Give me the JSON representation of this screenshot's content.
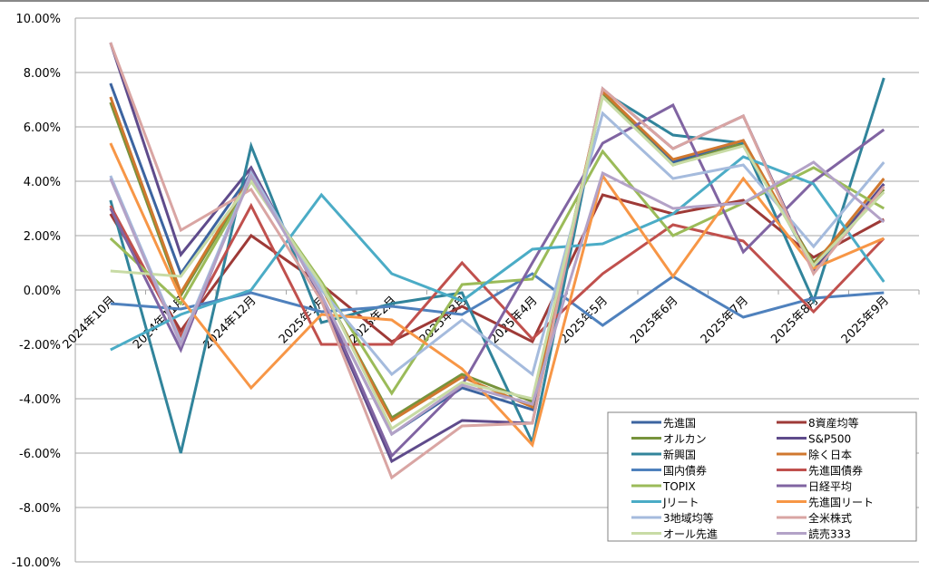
{
  "chart_data": {
    "type": "line",
    "title": "",
    "xlabel": "",
    "ylabel": "",
    "ylim": [
      -10,
      10
    ],
    "y_ticks": [
      "10.00%",
      "8.00%",
      "6.00%",
      "4.00%",
      "2.00%",
      "0.00%",
      "-2.00%",
      "-4.00%",
      "-6.00%",
      "-8.00%",
      "-10.00%"
    ],
    "y_tick_values": [
      10,
      8,
      6,
      4,
      2,
      0,
      -2,
      -4,
      -6,
      -8,
      -10
    ],
    "grid": true,
    "legend_position": "bottom-right",
    "categories": [
      "2024年10月",
      "2024年11月",
      "2024年12月",
      "2025年1月",
      "2025年2月",
      "2025年3月",
      "2025年4月",
      "2025年5月",
      "2025年6月",
      "2025年7月",
      "2025年8月",
      "2025年9月"
    ],
    "series": [
      {
        "name": "先進国",
        "color": "#3C64A0",
        "values": [
          7.6,
          0.6,
          4.3,
          -0.2,
          -5.3,
          -3.6,
          -4.4,
          7.3,
          4.7,
          5.5,
          0.8,
          3.9
        ]
      },
      {
        "name": "8資産均等",
        "color": "#9E3A37",
        "values": [
          2.8,
          -1.5,
          2.0,
          0.2,
          -1.9,
          -0.6,
          -1.9,
          3.5,
          2.8,
          3.3,
          1.2,
          2.6
        ]
      },
      {
        "name": "オルカン",
        "color": "#77933C",
        "values": [
          6.9,
          -0.2,
          4.1,
          0.1,
          -4.7,
          -3.1,
          -4.1,
          7.2,
          4.6,
          5.4,
          1.0,
          3.7
        ]
      },
      {
        "name": "S&P500",
        "color": "#5F4B8B",
        "values": [
          9.1,
          1.3,
          4.5,
          -0.3,
          -6.3,
          -4.8,
          -4.9,
          7.4,
          5.2,
          6.4,
          0.7,
          3.9
        ]
      },
      {
        "name": "新興国",
        "color": "#31849B",
        "values": [
          3.3,
          -6.0,
          5.3,
          -1.2,
          -0.5,
          -0.1,
          -5.6,
          7.3,
          5.7,
          5.4,
          -0.4,
          7.8
        ]
      },
      {
        "name": "除く日本",
        "color": "#D0782F",
        "values": [
          7.1,
          -0.1,
          4.2,
          0.1,
          -4.8,
          -3.2,
          -4.3,
          7.3,
          4.8,
          5.5,
          0.9,
          4.1
        ]
      },
      {
        "name": "国内債券",
        "color": "#4F81BD",
        "values": [
          -0.5,
          -0.7,
          -0.1,
          -0.8,
          -0.6,
          -0.9,
          0.6,
          -1.3,
          0.5,
          -1.0,
          -0.3,
          -0.1
        ]
      },
      {
        "name": "先進国債券",
        "color": "#C0504D",
        "values": [
          3.1,
          -1.7,
          3.1,
          -2.0,
          -2.0,
          1.0,
          -1.8,
          0.6,
          2.4,
          1.8,
          -0.8,
          1.9
        ]
      },
      {
        "name": "TOPIX",
        "color": "#9BBB59",
        "values": [
          1.9,
          -0.5,
          4.0,
          0.3,
          -3.8,
          0.2,
          0.4,
          5.1,
          2.0,
          3.2,
          4.5,
          3.0
        ]
      },
      {
        "name": "日経平均",
        "color": "#8064A2",
        "values": [
          3.0,
          -2.2,
          4.4,
          -0.2,
          -6.1,
          -3.5,
          1.0,
          5.4,
          6.8,
          1.4,
          4.0,
          5.9
        ]
      },
      {
        "name": "Jリート",
        "color": "#4BACC6",
        "values": [
          -2.2,
          -0.9,
          0.0,
          3.5,
          0.6,
          -0.4,
          1.5,
          1.7,
          2.8,
          4.9,
          3.9,
          0.3
        ]
      },
      {
        "name": "先進国リート",
        "color": "#F79646",
        "values": [
          5.4,
          -0.3,
          -3.6,
          -0.9,
          -1.1,
          -2.9,
          -5.7,
          4.2,
          0.5,
          4.1,
          0.8,
          1.9
        ]
      },
      {
        "name": "3地域均等",
        "color": "#A5BBDD",
        "values": [
          4.2,
          -1.9,
          4.3,
          0.0,
          -3.1,
          -1.1,
          -3.1,
          6.5,
          4.1,
          4.6,
          1.6,
          4.7
        ]
      },
      {
        "name": "全米株式",
        "color": "#D9A5A3",
        "values": [
          9.1,
          2.2,
          3.7,
          -0.4,
          -6.9,
          -5.0,
          -4.9,
          7.4,
          5.2,
          6.4,
          0.6,
          3.8
        ]
      },
      {
        "name": "オール先進",
        "color": "#C8DBA5",
        "values": [
          0.7,
          0.5,
          4.0,
          0.2,
          -5.1,
          -3.4,
          -4.0,
          7.1,
          4.6,
          5.3,
          0.9,
          3.6
        ]
      },
      {
        "name": "読売333",
        "color": "#B3A2C7",
        "values": [
          4.1,
          -2.0,
          4.2,
          -0.2,
          -5.3,
          -3.5,
          -4.2,
          4.3,
          3.0,
          3.2,
          4.7,
          2.5
        ]
      }
    ]
  }
}
